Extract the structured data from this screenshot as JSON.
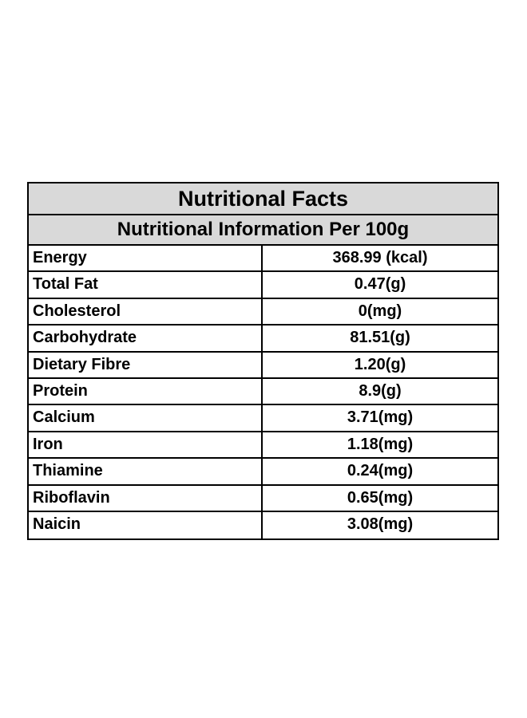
{
  "table": {
    "title": "Nutritional Facts",
    "subtitle": "Nutritional Information Per 100g",
    "rows": [
      {
        "nutrient": "Energy",
        "value": "368.99 (kcal)"
      },
      {
        "nutrient": "Total Fat",
        "value": "0.47(g)"
      },
      {
        "nutrient": "Cholesterol",
        "value": "0(mg)"
      },
      {
        "nutrient": "Carbohydrate",
        "value": "81.51(g)"
      },
      {
        "nutrient": "Dietary Fibre",
        "value": "1.20(g)"
      },
      {
        "nutrient": "Protein",
        "value": "8.9(g)"
      },
      {
        "nutrient": "Calcium",
        "value": "3.71(mg)"
      },
      {
        "nutrient": "Iron",
        "value": "1.18(mg)"
      },
      {
        "nutrient": "Thiamine",
        "value": "0.24(mg)"
      },
      {
        "nutrient": "Riboflavin",
        "value": "0.65(mg)"
      },
      {
        "nutrient": "Naicin",
        "value": "3.08(mg)"
      }
    ],
    "colors": {
      "header_background": "#d9d9d9",
      "border": "#000000",
      "text": "#000000"
    }
  }
}
